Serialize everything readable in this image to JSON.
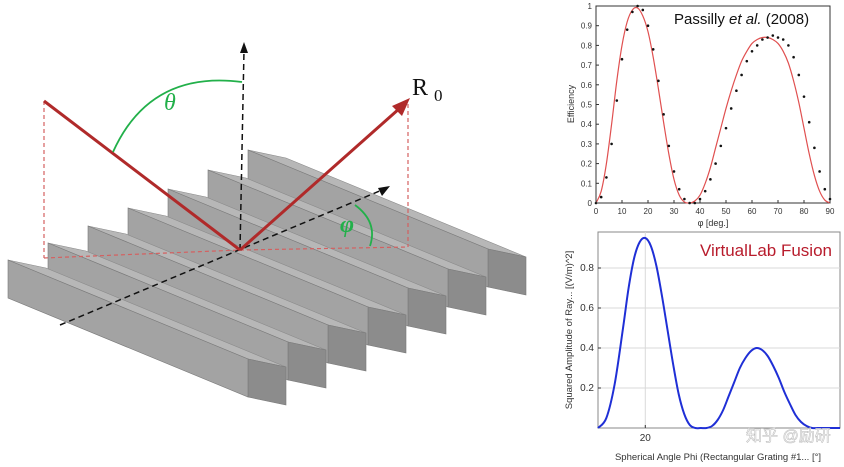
{
  "diagram": {
    "labels": {
      "theta": "θ",
      "phi": "φ",
      "r_main": "R",
      "r_sub": "0"
    },
    "colors": {
      "ray": "#b02a2a",
      "angle_arc": "#22b04a",
      "projection_dash": "#d46060",
      "bar_top": "#b7b7b7",
      "bar_front": "#a3a3a3",
      "bar_side": "#8c8c8c"
    }
  },
  "chart_data": [
    {
      "type": "line",
      "title": "Passilly et al. (2008)",
      "title_parts": [
        "Passilly ",
        "et al.",
        " (2008)"
      ],
      "xlabel": "φ [deg.]",
      "ylabel": "Efficiency",
      "xlim": [
        0,
        90
      ],
      "ylim": [
        0,
        1
      ],
      "xticks": [
        0,
        10,
        20,
        30,
        40,
        50,
        60,
        70,
        80,
        90
      ],
      "yticks": [
        0,
        0.1,
        0.2,
        0.3,
        0.4,
        0.5,
        0.6,
        0.7,
        0.8,
        0.9,
        1
      ],
      "ytick_labels": [
        "0",
        "0.1",
        "0.2",
        "0.3",
        "0.4",
        "0.5",
        "0.6",
        "0.7",
        "0.8",
        "0.9",
        "1"
      ],
      "grid": false,
      "series": [
        {
          "style": "line",
          "color": "#e05050",
          "x": [
            0,
            2,
            4,
            6,
            8,
            10,
            12,
            14,
            16,
            18,
            20,
            22,
            24,
            26,
            28,
            30,
            32,
            34,
            36,
            38,
            40,
            42,
            44,
            46,
            48,
            50,
            52,
            54,
            56,
            58,
            60,
            62,
            64,
            66,
            68,
            70,
            72,
            74,
            76,
            78,
            80,
            82,
            84,
            86,
            88,
            90
          ],
          "y": [
            0.0,
            0.06,
            0.2,
            0.4,
            0.62,
            0.8,
            0.92,
            0.98,
            0.99,
            0.95,
            0.87,
            0.74,
            0.58,
            0.41,
            0.25,
            0.12,
            0.04,
            0.005,
            0.0,
            0.01,
            0.04,
            0.1,
            0.18,
            0.28,
            0.38,
            0.48,
            0.57,
            0.65,
            0.72,
            0.77,
            0.81,
            0.83,
            0.84,
            0.84,
            0.83,
            0.81,
            0.77,
            0.71,
            0.62,
            0.51,
            0.38,
            0.25,
            0.14,
            0.06,
            0.015,
            0.0
          ]
        },
        {
          "style": "dots",
          "color": "#111111",
          "x": [
            0,
            2,
            4,
            6,
            8,
            10,
            12,
            14,
            16,
            18,
            20,
            22,
            24,
            26,
            28,
            30,
            32,
            34,
            36,
            38,
            40,
            42,
            44,
            46,
            48,
            50,
            52,
            54,
            56,
            58,
            60,
            62,
            64,
            66,
            68,
            70,
            72,
            74,
            76,
            78,
            80,
            82,
            84,
            86,
            88,
            90
          ],
          "y": [
            0.0,
            0.03,
            0.13,
            0.3,
            0.52,
            0.73,
            0.88,
            0.97,
            1.0,
            0.98,
            0.9,
            0.78,
            0.62,
            0.45,
            0.29,
            0.16,
            0.07,
            0.02,
            0.0,
            0.0,
            0.02,
            0.06,
            0.12,
            0.2,
            0.29,
            0.38,
            0.48,
            0.57,
            0.65,
            0.72,
            0.77,
            0.8,
            0.83,
            0.84,
            0.85,
            0.84,
            0.83,
            0.8,
            0.74,
            0.65,
            0.54,
            0.41,
            0.28,
            0.16,
            0.07,
            0.02
          ]
        }
      ]
    },
    {
      "type": "line",
      "title": "VirtualLab Fusion",
      "xlabel": "Spherical Angle Phi (Rectangular Grating #1... [°]",
      "ylabel": "Squared Amplitude of Ray... [(V/m)^2]",
      "xlim": [
        3,
        90
      ],
      "ylim": [
        0,
        0.98
      ],
      "xticks": [
        20
      ],
      "yticks": [
        0.2,
        0.4,
        0.6,
        0.8
      ],
      "ytick_labels": [
        "0.2",
        "0.4",
        "0.6",
        "0.8"
      ],
      "grid": true,
      "series": [
        {
          "style": "line",
          "color": "#1f2fd6",
          "x": [
            3,
            6,
            9,
            12,
            14,
            16,
            18,
            20,
            22,
            24,
            26,
            28,
            30,
            32,
            34,
            36,
            38,
            40,
            42,
            44,
            46,
            48,
            50,
            52,
            54,
            56,
            58,
            60,
            62,
            64,
            66,
            68,
            70,
            72,
            74,
            76,
            78,
            80,
            82,
            84,
            86,
            88,
            90
          ],
          "y": [
            0.0,
            0.05,
            0.22,
            0.5,
            0.7,
            0.85,
            0.93,
            0.95,
            0.91,
            0.81,
            0.66,
            0.49,
            0.32,
            0.17,
            0.07,
            0.015,
            0.0,
            0.0,
            0.0,
            0.01,
            0.04,
            0.09,
            0.16,
            0.23,
            0.3,
            0.35,
            0.385,
            0.4,
            0.39,
            0.36,
            0.31,
            0.25,
            0.18,
            0.12,
            0.065,
            0.03,
            0.01,
            0.0,
            0.0,
            0.0,
            0.0,
            0.0,
            0.0
          ]
        }
      ]
    }
  ],
  "watermark": "知乎 @励研"
}
